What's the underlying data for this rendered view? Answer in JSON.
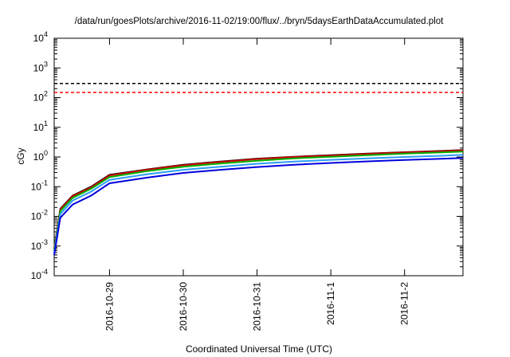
{
  "chart_data": {
    "type": "line",
    "title": "/data/run/goesPlots/archive/2016-11-02/19:00/flux/../bryn/5daysEarthDataAccumulated.plot",
    "xlabel": "Coordinated Universal Time (UTC)",
    "ylabel": "cGy",
    "y_scale": "log",
    "ylim": [
      0.0001,
      10000
    ],
    "xlim": [
      "2016-10-28T06:00",
      "2016-11-02T19:00"
    ],
    "x_ticks": [
      "2016-10-29",
      "2016-10-30",
      "2016-10-31",
      "2016-11-1",
      "2016-11-2"
    ],
    "y_ticks": [
      {
        "value": 0.0001,
        "base": "10",
        "exp": "-4"
      },
      {
        "value": 0.001,
        "base": "10",
        "exp": "-3"
      },
      {
        "value": 0.01,
        "base": "10",
        "exp": "-2"
      },
      {
        "value": 0.1,
        "base": "10",
        "exp": "-1"
      },
      {
        "value": 1,
        "base": "10",
        "exp": "0"
      },
      {
        "value": 10,
        "base": "10",
        "exp": "1"
      },
      {
        "value": 100,
        "base": "10",
        "exp": "2"
      },
      {
        "value": 1000,
        "base": "10",
        "exp": "3"
      },
      {
        "value": 10000,
        "base": "10",
        "exp": "4"
      }
    ],
    "grid": false,
    "legend": "none",
    "reference_lines": [
      {
        "y": 300,
        "color": "#000000",
        "style": "dashed"
      },
      {
        "y": 150,
        "color": "#ff0000",
        "style": "dashed"
      }
    ],
    "series": [
      {
        "color": "#000000",
        "points": [
          [
            "2016-10-28T06:00",
            0.0008
          ],
          [
            "2016-10-28T08:00",
            0.018
          ],
          [
            "2016-10-28T12:00",
            0.05
          ],
          [
            "2016-10-28T18:00",
            0.1
          ],
          [
            "2016-10-29T00:00",
            0.25
          ],
          [
            "2016-10-29T12:00",
            0.38
          ],
          [
            "2016-10-30T00:00",
            0.55
          ],
          [
            "2016-10-30T12:00",
            0.7
          ],
          [
            "2016-10-31T00:00",
            0.88
          ],
          [
            "2016-10-31T12:00",
            1.02
          ],
          [
            "2016-11-01T00:00",
            1.15
          ],
          [
            "2016-11-01T12:00",
            1.3
          ],
          [
            "2016-11-02T00:00",
            1.45
          ],
          [
            "2016-11-02T12:00",
            1.6
          ],
          [
            "2016-11-02T19:00",
            1.72
          ]
        ]
      },
      {
        "color": "#cc0000",
        "points": [
          [
            "2016-10-28T06:00",
            0.0008
          ],
          [
            "2016-10-28T08:00",
            0.017
          ],
          [
            "2016-10-28T12:00",
            0.048
          ],
          [
            "2016-10-28T18:00",
            0.095
          ],
          [
            "2016-10-29T00:00",
            0.24
          ],
          [
            "2016-10-29T12:00",
            0.37
          ],
          [
            "2016-10-30T00:00",
            0.53
          ],
          [
            "2016-10-30T12:00",
            0.68
          ],
          [
            "2016-10-31T00:00",
            0.85
          ],
          [
            "2016-10-31T12:00",
            1.0
          ],
          [
            "2016-11-01T00:00",
            1.12
          ],
          [
            "2016-11-01T12:00",
            1.27
          ],
          [
            "2016-11-02T00:00",
            1.42
          ],
          [
            "2016-11-02T12:00",
            1.56
          ],
          [
            "2016-11-02T19:00",
            1.68
          ]
        ]
      },
      {
        "color": "#00b000",
        "points": [
          [
            "2016-10-28T06:00",
            0.0007
          ],
          [
            "2016-10-28T08:00",
            0.015
          ],
          [
            "2016-10-28T12:00",
            0.042
          ],
          [
            "2016-10-28T18:00",
            0.085
          ],
          [
            "2016-10-29T00:00",
            0.21
          ],
          [
            "2016-10-29T12:00",
            0.33
          ],
          [
            "2016-10-30T00:00",
            0.47
          ],
          [
            "2016-10-30T12:00",
            0.6
          ],
          [
            "2016-10-31T00:00",
            0.75
          ],
          [
            "2016-10-31T12:00",
            0.9
          ],
          [
            "2016-11-01T00:00",
            1.02
          ],
          [
            "2016-11-01T12:00",
            1.15
          ],
          [
            "2016-11-02T00:00",
            1.3
          ],
          [
            "2016-11-02T12:00",
            1.42
          ],
          [
            "2016-11-02T19:00",
            1.52
          ]
        ]
      },
      {
        "color": "#2a9df4",
        "points": [
          [
            "2016-10-28T06:00",
            0.0006
          ],
          [
            "2016-10-28T08:00",
            0.012
          ],
          [
            "2016-10-28T12:00",
            0.034
          ],
          [
            "2016-10-28T18:00",
            0.068
          ],
          [
            "2016-10-29T00:00",
            0.17
          ],
          [
            "2016-10-29T12:00",
            0.26
          ],
          [
            "2016-10-30T00:00",
            0.37
          ],
          [
            "2016-10-30T12:00",
            0.47
          ],
          [
            "2016-10-31T00:00",
            0.59
          ],
          [
            "2016-10-31T12:00",
            0.7
          ],
          [
            "2016-11-01T00:00",
            0.8
          ],
          [
            "2016-11-01T12:00",
            0.9
          ],
          [
            "2016-11-02T00:00",
            1.0
          ],
          [
            "2016-11-02T12:00",
            1.1
          ],
          [
            "2016-11-02T19:00",
            1.18
          ]
        ]
      },
      {
        "color": "#0000dd",
        "points": [
          [
            "2016-10-28T06:00",
            0.0005
          ],
          [
            "2016-10-28T08:00",
            0.009
          ],
          [
            "2016-10-28T12:00",
            0.025
          ],
          [
            "2016-10-28T18:00",
            0.05
          ],
          [
            "2016-10-29T00:00",
            0.13
          ],
          [
            "2016-10-29T12:00",
            0.2
          ],
          [
            "2016-10-30T00:00",
            0.29
          ],
          [
            "2016-10-30T12:00",
            0.37
          ],
          [
            "2016-10-31T00:00",
            0.46
          ],
          [
            "2016-10-31T12:00",
            0.55
          ],
          [
            "2016-11-01T00:00",
            0.63
          ],
          [
            "2016-11-01T12:00",
            0.71
          ],
          [
            "2016-11-02T00:00",
            0.79
          ],
          [
            "2016-11-02T12:00",
            0.87
          ],
          [
            "2016-11-02T19:00",
            0.93
          ]
        ]
      }
    ]
  }
}
